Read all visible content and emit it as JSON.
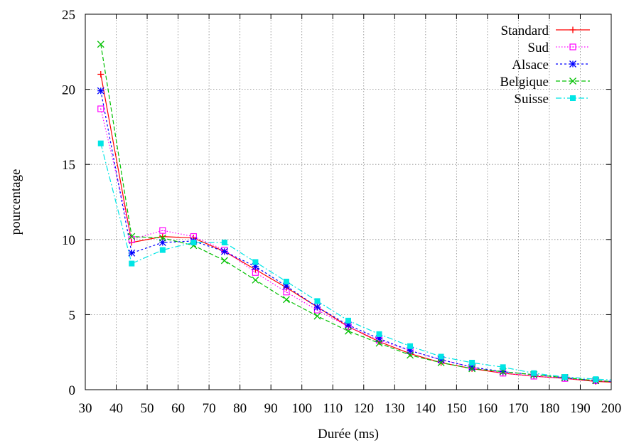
{
  "chart_data": {
    "type": "line",
    "title": "",
    "xlabel": "Durée (ms)",
    "ylabel": "pourcentage",
    "xlim": [
      30,
      200
    ],
    "ylim": [
      0,
      25
    ],
    "xticks": [
      30,
      40,
      50,
      60,
      70,
      80,
      90,
      100,
      110,
      120,
      130,
      140,
      150,
      160,
      170,
      180,
      190,
      200
    ],
    "yticks": [
      0,
      5,
      10,
      15,
      20,
      25
    ],
    "grid": true,
    "legend": "top-right",
    "x": [
      35,
      45,
      55,
      65,
      75,
      85,
      95,
      105,
      115,
      125,
      135,
      145,
      155,
      165,
      175,
      185,
      195,
      205
    ],
    "series": [
      {
        "name": "Standard",
        "color": "#ff0000",
        "marker": "plus",
        "dash": "",
        "values": [
          21.0,
          9.8,
          10.2,
          10.1,
          9.2,
          8.0,
          6.8,
          5.5,
          4.2,
          3.2,
          2.4,
          1.8,
          1.4,
          1.1,
          0.9,
          0.75,
          0.55,
          0.45
        ]
      },
      {
        "name": "Sud",
        "color": "#ff00ff",
        "marker": "open-square",
        "dash": "1.5,2.5",
        "values": [
          18.7,
          10.0,
          10.6,
          10.2,
          9.3,
          7.8,
          6.5,
          5.3,
          4.2,
          3.3,
          2.6,
          2.0,
          1.5,
          1.1,
          0.9,
          0.75,
          0.6,
          0.5
        ]
      },
      {
        "name": "Alsace",
        "color": "#0000ff",
        "marker": "star",
        "dash": "3,3",
        "values": [
          19.9,
          9.1,
          9.8,
          9.9,
          9.2,
          8.2,
          6.9,
          5.5,
          4.3,
          3.4,
          2.6,
          2.0,
          1.5,
          1.2,
          1.0,
          0.8,
          0.6,
          0.5
        ]
      },
      {
        "name": "Belgique",
        "color": "#00c000",
        "marker": "cross",
        "dash": "6,3",
        "values": [
          23.0,
          10.2,
          10.1,
          9.6,
          8.6,
          7.3,
          6.0,
          4.9,
          3.9,
          3.1,
          2.3,
          1.8,
          1.4,
          1.2,
          1.0,
          0.8,
          0.6,
          0.5
        ]
      },
      {
        "name": "Suisse",
        "color": "#00e5e5",
        "marker": "filled-square",
        "dash": "8,3,2,3",
        "values": [
          16.4,
          8.4,
          9.3,
          9.8,
          9.8,
          8.5,
          7.2,
          5.9,
          4.6,
          3.7,
          2.9,
          2.2,
          1.8,
          1.5,
          1.1,
          0.85,
          0.7,
          0.6
        ]
      }
    ]
  }
}
